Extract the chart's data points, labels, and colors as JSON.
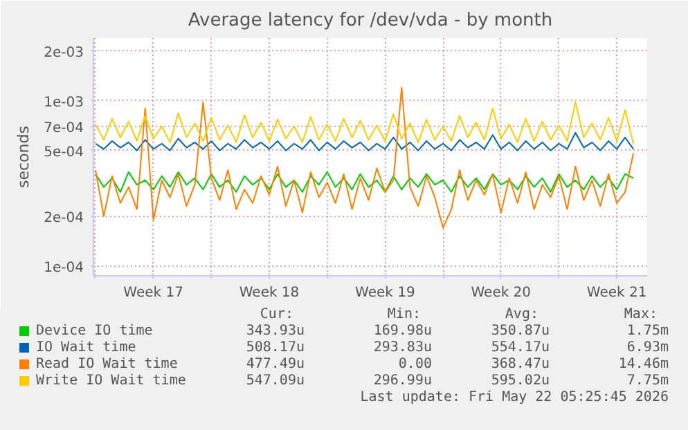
{
  "chart_data": {
    "type": "line",
    "title": "Average latency for /dev/vda - by month",
    "ylabel": "seconds",
    "log": "y",
    "grid": true,
    "legend": "bottom",
    "marker": "none",
    "line_style": "solid",
    "ylim": [
      8.7e-05,
      0.0024
    ],
    "yticks": [
      {
        "value": 0.0001,
        "label": "1e-04"
      },
      {
        "value": 0.0002,
        "label": "2e-04"
      },
      {
        "value": 0.0005,
        "label": "5e-04"
      },
      {
        "value": 0.0007,
        "label": "7e-04"
      },
      {
        "value": 0.001,
        "label": "1e-03"
      },
      {
        "value": 0.002,
        "label": "2e-03"
      }
    ],
    "xlim": [
      "2026-04-19T21:00",
      "2026-05-23T08:00"
    ],
    "xticks": [
      {
        "value": "2026-04-20T00:00",
        "label": null
      },
      {
        "value": "2026-04-23T12:00",
        "label": "Week 17"
      },
      {
        "value": "2026-04-27T00:00",
        "label": null
      },
      {
        "value": "2026-04-30T12:00",
        "label": "Week 18"
      },
      {
        "value": "2026-05-04T00:00",
        "label": null
      },
      {
        "value": "2026-05-07T12:00",
        "label": "Week 19"
      },
      {
        "value": "2026-05-11T00:00",
        "label": null
      },
      {
        "value": "2026-05-14T12:00",
        "label": "Week 20"
      },
      {
        "value": "2026-05-18T00:00",
        "label": null
      },
      {
        "value": "2026-05-21T12:00",
        "label": "Week 21"
      }
    ],
    "x": [
      "2026-04-20T00:00",
      "2026-04-20T12:00",
      "2026-04-21T00:00",
      "2026-04-21T12:00",
      "2026-04-22T00:00",
      "2026-04-22T12:00",
      "2026-04-23T00:00",
      "2026-04-23T12:00",
      "2026-04-24T00:00",
      "2026-04-24T12:00",
      "2026-04-25T00:00",
      "2026-04-25T12:00",
      "2026-04-26T00:00",
      "2026-04-26T12:00",
      "2026-04-27T00:00",
      "2026-04-27T12:00",
      "2026-04-28T00:00",
      "2026-04-28T12:00",
      "2026-04-29T00:00",
      "2026-04-29T12:00",
      "2026-04-30T00:00",
      "2026-04-30T12:00",
      "2026-05-01T00:00",
      "2026-05-01T12:00",
      "2026-05-02T00:00",
      "2026-05-02T12:00",
      "2026-05-03T00:00",
      "2026-05-03T12:00",
      "2026-05-04T00:00",
      "2026-05-04T12:00",
      "2026-05-05T00:00",
      "2026-05-05T12:00",
      "2026-05-06T00:00",
      "2026-05-06T12:00",
      "2026-05-07T00:00",
      "2026-05-07T12:00",
      "2026-05-08T00:00",
      "2026-05-08T12:00",
      "2026-05-09T00:00",
      "2026-05-09T12:00",
      "2026-05-10T00:00",
      "2026-05-10T12:00",
      "2026-05-11T00:00",
      "2026-05-11T12:00",
      "2026-05-12T00:00",
      "2026-05-12T12:00",
      "2026-05-13T00:00",
      "2026-05-13T12:00",
      "2026-05-14T00:00",
      "2026-05-14T12:00",
      "2026-05-15T00:00",
      "2026-05-15T12:00",
      "2026-05-16T00:00",
      "2026-05-16T12:00",
      "2026-05-17T00:00",
      "2026-05-17T12:00",
      "2026-05-18T00:00",
      "2026-05-18T12:00",
      "2026-05-19T00:00",
      "2026-05-19T12:00",
      "2026-05-20T00:00",
      "2026-05-20T12:00",
      "2026-05-21T00:00",
      "2026-05-21T12:00",
      "2026-05-22T00:00",
      "2026-05-22T12:00"
    ],
    "series": [
      {
        "name": "Device IO time",
        "color": "#00cc00",
        "values": [
          0.00036,
          0.0003,
          0.00034,
          0.00028,
          0.00037,
          0.00031,
          0.00033,
          0.00029,
          0.00035,
          0.0003,
          0.00037,
          0.00031,
          0.00034,
          0.00029,
          0.00036,
          0.0003,
          0.00033,
          0.00028,
          0.00035,
          0.00031,
          0.00034,
          0.00029,
          0.00036,
          0.0003,
          0.00033,
          0.00028,
          0.00035,
          0.00031,
          0.00037,
          0.0003,
          0.00034,
          0.00029,
          0.00036,
          0.0003,
          0.00033,
          0.00028,
          0.00035,
          0.00029,
          0.00034,
          0.0003,
          0.00036,
          0.00031,
          0.00033,
          0.00028,
          0.00035,
          0.0003,
          0.00034,
          0.00029,
          0.00036,
          0.00031,
          0.00033,
          0.00029,
          0.00035,
          0.0003,
          0.00034,
          0.00028,
          0.00036,
          0.0003,
          0.00033,
          0.00029,
          0.00035,
          0.0003,
          0.00034,
          0.00029,
          0.00036,
          0.00034
        ]
      },
      {
        "name": "IO Wait time",
        "color": "#0066b3",
        "values": [
          0.00055,
          0.00051,
          0.00057,
          0.00052,
          0.00056,
          0.0005,
          0.00058,
          0.00051,
          0.00055,
          0.0005,
          0.00059,
          0.00052,
          0.00056,
          0.00051,
          0.00057,
          0.0005,
          0.00055,
          0.00051,
          0.00058,
          0.00052,
          0.00056,
          0.00051,
          0.00057,
          0.0005,
          0.00055,
          0.00051,
          0.00058,
          0.0005,
          0.00056,
          0.00051,
          0.00057,
          0.00052,
          0.00056,
          0.0005,
          0.00055,
          0.00051,
          0.0006,
          0.00051,
          0.00056,
          0.0005,
          0.00057,
          0.00051,
          0.00055,
          0.0005,
          0.00058,
          0.00052,
          0.00056,
          0.00051,
          0.00062,
          0.00051,
          0.00056,
          0.0005,
          0.00057,
          0.00051,
          0.00056,
          0.0005,
          0.00055,
          0.00051,
          0.00064,
          0.00052,
          0.00056,
          0.0005,
          0.00057,
          0.00051,
          0.0006,
          0.00051
        ]
      },
      {
        "name": "Read IO Wait time",
        "color": "#ff8000",
        "values": [
          0.00038,
          0.0002,
          0.00035,
          0.00024,
          0.0003,
          0.00022,
          0.0009,
          0.00019,
          0.00033,
          0.00026,
          0.00036,
          0.00023,
          0.00031,
          0.00098,
          0.00034,
          0.00025,
          0.00038,
          0.00022,
          0.00029,
          0.00024,
          0.00035,
          0.00027,
          0.0004,
          0.00023,
          0.00033,
          0.00021,
          0.00037,
          0.00026,
          0.00032,
          0.00024,
          0.00036,
          0.00022,
          0.00034,
          0.00025,
          0.00039,
          0.00028,
          0.00033,
          0.0012,
          0.0003,
          0.00023,
          0.00035,
          0.00026,
          0.00017,
          0.00022,
          0.00038,
          0.00025,
          0.00033,
          0.00027,
          0.00036,
          0.00021,
          0.00034,
          0.00024,
          0.00037,
          0.00022,
          0.00031,
          0.00026,
          0.00035,
          0.00022,
          0.0004,
          0.00025,
          0.00033,
          0.00023,
          0.00036,
          0.00024,
          0.00028,
          0.00048
        ]
      },
      {
        "name": "Write IO Wait time",
        "color": "#ffcc00",
        "values": [
          0.00072,
          0.00058,
          0.00078,
          0.0006,
          0.00075,
          0.00057,
          0.00081,
          0.00059,
          0.0007,
          0.00056,
          0.00084,
          0.0006,
          0.00073,
          0.00057,
          0.00079,
          0.00058,
          0.00071,
          0.00056,
          0.00082,
          0.0006,
          0.00074,
          0.00057,
          0.00077,
          0.00059,
          0.0007,
          0.00056,
          0.0008,
          0.00058,
          0.00072,
          0.00057,
          0.00078,
          0.0006,
          0.00076,
          0.00058,
          0.00071,
          0.00057,
          0.00083,
          0.00059,
          0.00073,
          0.00056,
          0.00077,
          0.00058,
          0.0007,
          0.00057,
          0.00081,
          0.0006,
          0.00074,
          0.00058,
          0.0009,
          0.00059,
          0.00072,
          0.00056,
          0.00078,
          0.00057,
          0.00075,
          0.00058,
          0.00071,
          0.00057,
          0.00098,
          0.0006,
          0.00073,
          0.00058,
          0.00079,
          0.00057,
          0.00088,
          0.00055
        ]
      }
    ],
    "annotations": [
      "Cur:",
      "Min:",
      "Avg:",
      "Max:",
      "343.93u",
      "169.98u",
      "350.87u",
      "1.75m",
      "508.17u",
      "293.83u",
      "554.17u",
      "6.93m",
      "477.49u",
      "0.00",
      "368.47u",
      "14.46m",
      "547.09u",
      "296.99u",
      "595.02u",
      "7.75m",
      "Last update: Fri May 22 05:25:45 2026"
    ]
  }
}
